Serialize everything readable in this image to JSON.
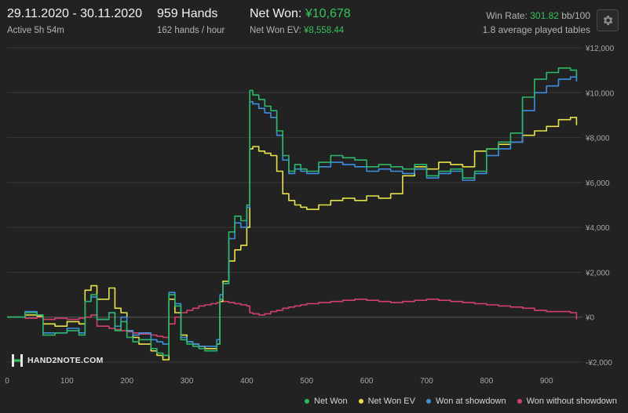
{
  "header": {
    "date_range": "29.11.2020 - 30.11.2020",
    "active": "Active 5h 54m",
    "hands": "959 Hands",
    "hands_per_hour": "162 hands / hour",
    "net_won_label": "Net Won: ",
    "net_won_value": "¥10,678",
    "net_won_ev_label": "Net Won  EV: ",
    "net_won_ev_value": "¥8,558.44",
    "win_rate_label": "Win Rate: ",
    "win_rate_value": "301.82",
    "win_rate_unit": " bb/100",
    "avg_tables": "1.8 average played tables"
  },
  "logo": {
    "text": "HAND2NOTE.COM"
  },
  "icons": {
    "settings": "gear-icon",
    "logo": "hand2note-logo-icon"
  },
  "colors": {
    "net_won": "#2cb86a",
    "net_won_ev": "#e6e34a",
    "won_at_showdown": "#3d8fe0",
    "won_without_showdown": "#d4406e",
    "accent_green": "#35c45a"
  },
  "chart_data": {
    "type": "line",
    "xlabel": "",
    "ylabel": "",
    "xlim": [
      0,
      960
    ],
    "ylim": [
      -2000,
      12000
    ],
    "x_ticks": [
      0,
      100,
      200,
      300,
      400,
      500,
      600,
      700,
      800,
      900
    ],
    "y_ticks": [
      {
        "value": 12000,
        "label": "¥12,000"
      },
      {
        "value": 10000,
        "label": "¥10,000"
      },
      {
        "value": 8000,
        "label": "¥8,000"
      },
      {
        "value": 6000,
        "label": "¥6,000"
      },
      {
        "value": 4000,
        "label": "¥4,000"
      },
      {
        "value": 2000,
        "label": "¥2,000"
      },
      {
        "value": 0,
        "label": "¥0"
      },
      {
        "value": -2000,
        "label": "-¥2,000"
      }
    ],
    "grid": true,
    "legend_position": "bottom-right",
    "series": [
      {
        "name": "Net Won",
        "color": "#2cb86a",
        "x": [
          0,
          30,
          50,
          60,
          80,
          100,
          120,
          130,
          140,
          150,
          170,
          180,
          190,
          200,
          210,
          220,
          240,
          250,
          260,
          270,
          280,
          290,
          300,
          310,
          320,
          330,
          340,
          350,
          355,
          360,
          370,
          380,
          390,
          400,
          405,
          410,
          420,
          430,
          440,
          450,
          460,
          470,
          480,
          490,
          500,
          520,
          540,
          560,
          580,
          600,
          620,
          640,
          660,
          680,
          700,
          720,
          740,
          760,
          780,
          800,
          820,
          840,
          860,
          880,
          900,
          920,
          940,
          950
        ],
        "y": [
          0,
          200,
          100,
          -800,
          -700,
          -600,
          -800,
          700,
          1000,
          -100,
          200,
          -600,
          -200,
          -900,
          -1100,
          -1000,
          -1400,
          -1600,
          -1700,
          1000,
          500,
          -1000,
          -1200,
          -1300,
          -1400,
          -1500,
          -1500,
          -1200,
          800,
          1500,
          3800,
          4500,
          4300,
          5000,
          10100,
          9900,
          9700,
          9400,
          9200,
          8300,
          7200,
          6500,
          6800,
          6600,
          6500,
          6900,
          7200,
          7100,
          7000,
          6700,
          6800,
          6700,
          6600,
          6800,
          6300,
          6500,
          6600,
          6200,
          6500,
          7500,
          7800,
          8200,
          9800,
          10600,
          10900,
          11100,
          11000,
          10700
        ]
      },
      {
        "name": "Net Won  EV",
        "color": "#e6e34a",
        "x": [
          0,
          30,
          50,
          60,
          80,
          100,
          120,
          130,
          140,
          150,
          170,
          180,
          190,
          200,
          210,
          220,
          240,
          250,
          260,
          270,
          280,
          290,
          300,
          310,
          320,
          330,
          340,
          350,
          355,
          360,
          370,
          380,
          390,
          400,
          405,
          410,
          420,
          430,
          440,
          450,
          460,
          470,
          480,
          490,
          500,
          520,
          540,
          560,
          580,
          600,
          620,
          640,
          660,
          680,
          700,
          720,
          740,
          760,
          780,
          800,
          820,
          840,
          860,
          880,
          900,
          920,
          940,
          950
        ],
        "y": [
          0,
          100,
          50,
          -300,
          -400,
          -200,
          -300,
          1200,
          1400,
          800,
          1300,
          400,
          200,
          -600,
          -900,
          -1200,
          -1500,
          -1700,
          -1900,
          800,
          200,
          -800,
          -1100,
          -1200,
          -1300,
          -1400,
          -1400,
          -1200,
          700,
          1600,
          2500,
          3000,
          3200,
          4000,
          7500,
          7600,
          7400,
          7300,
          7200,
          6500,
          5500,
          5200,
          5000,
          4900,
          4800,
          5000,
          5200,
          5300,
          5200,
          5400,
          5300,
          5500,
          6300,
          6700,
          6600,
          6900,
          6800,
          6700,
          7400,
          7500,
          7700,
          7800,
          8100,
          8300,
          8500,
          8800,
          8900,
          8550
        ]
      },
      {
        "name": "Won at showdown",
        "color": "#3d8fe0",
        "x": [
          0,
          30,
          50,
          60,
          80,
          100,
          120,
          130,
          140,
          150,
          170,
          180,
          190,
          200,
          210,
          220,
          240,
          250,
          260,
          270,
          280,
          290,
          300,
          310,
          320,
          330,
          340,
          350,
          355,
          360,
          370,
          380,
          390,
          400,
          405,
          410,
          420,
          430,
          440,
          450,
          460,
          470,
          480,
          490,
          500,
          520,
          540,
          560,
          580,
          600,
          620,
          640,
          660,
          680,
          700,
          720,
          740,
          760,
          780,
          800,
          820,
          840,
          860,
          880,
          900,
          920,
          940,
          950
        ],
        "y": [
          0,
          250,
          100,
          -700,
          -700,
          -500,
          -700,
          700,
          900,
          -100,
          200,
          -400,
          0,
          -600,
          -800,
          -700,
          -1000,
          -1100,
          -1200,
          1100,
          600,
          -900,
          -1100,
          -1200,
          -1300,
          -1300,
          -1300,
          -1000,
          1000,
          1500,
          3500,
          4200,
          4000,
          4900,
          9600,
          9500,
          9300,
          9100,
          8900,
          8100,
          7000,
          6400,
          6600,
          6500,
          6400,
          6700,
          6900,
          6800,
          6700,
          6500,
          6600,
          6500,
          6400,
          6600,
          6200,
          6400,
          6500,
          6100,
          6400,
          7200,
          7500,
          7800,
          9200,
          10000,
          10300,
          10600,
          10700,
          10500
        ]
      },
      {
        "name": "Won without showdown",
        "color": "#d4406e",
        "x": [
          0,
          30,
          50,
          60,
          80,
          100,
          120,
          130,
          140,
          150,
          170,
          180,
          190,
          200,
          210,
          220,
          240,
          250,
          260,
          270,
          280,
          290,
          300,
          310,
          320,
          330,
          340,
          350,
          355,
          360,
          370,
          380,
          390,
          400,
          405,
          410,
          420,
          430,
          440,
          450,
          460,
          470,
          480,
          490,
          500,
          520,
          540,
          560,
          580,
          600,
          620,
          640,
          660,
          680,
          700,
          720,
          740,
          760,
          780,
          800,
          820,
          840,
          860,
          880,
          900,
          920,
          940,
          950
        ],
        "y": [
          0,
          -50,
          0,
          -100,
          -50,
          -100,
          -50,
          0,
          100,
          -400,
          -500,
          -550,
          -600,
          -650,
          -700,
          -750,
          -800,
          -850,
          -900,
          -300,
          0,
          200,
          300,
          400,
          500,
          550,
          600,
          650,
          700,
          700,
          650,
          600,
          550,
          500,
          200,
          150,
          100,
          150,
          250,
          300,
          400,
          450,
          500,
          550,
          600,
          650,
          700,
          750,
          800,
          750,
          700,
          650,
          700,
          750,
          800,
          750,
          700,
          650,
          600,
          550,
          500,
          450,
          400,
          300,
          250,
          250,
          200,
          -100
        ]
      }
    ]
  }
}
